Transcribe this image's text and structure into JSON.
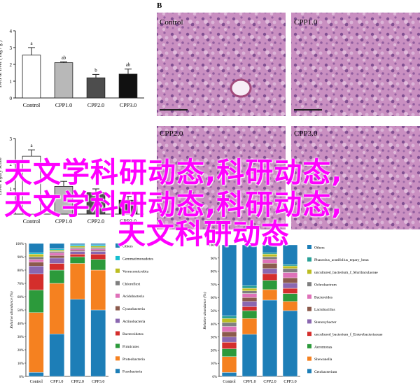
{
  "panel_b_letter": "B",
  "micro_labels": [
    "Control",
    "CPP1.0",
    "CPP2.0",
    "CPP3.0"
  ],
  "overlay_lines": [
    "天文学科研动态,科研动态,",
    "天文学科研动态,科研动态,",
    "天文科研动态"
  ],
  "colors": {
    "bars1": [
      "#ffffff",
      "#b8b8b8",
      "#4d4d4d",
      "#111111"
    ],
    "taxa": [
      "#1d7eb7",
      "#f58120",
      "#2c9a3b",
      "#d42e2c",
      "#8a67b0",
      "#8b5a4c",
      "#df72b9",
      "#7f7f7f",
      "#bcbd22",
      "#17becf"
    ],
    "genera": [
      "#1d7eb7",
      "#f58120",
      "#2c9a3b",
      "#d42e2c",
      "#8a67b0",
      "#8b5a4c",
      "#df72b9",
      "#7f7f7f",
      "#bcbd22",
      "#2aa198"
    ],
    "micro": "#c98fc1"
  },
  "chart_data": [
    {
      "type": "bar",
      "ylabel": "TAG of liver ( mg / g )",
      "categories": [
        "Control",
        "CPP1.0",
        "CPP2.0",
        "CPP3.0"
      ],
      "values": [
        2.55,
        2.1,
        1.2,
        1.42
      ],
      "errors": [
        0.45,
        0.05,
        0.2,
        0.3
      ],
      "annotations": [
        "a",
        "ab",
        "b",
        "ab"
      ],
      "ylim": [
        0,
        4
      ],
      "ticks": [
        "0",
        "1",
        "2",
        "3",
        "4"
      ]
    },
    {
      "type": "bar",
      "ylabel": "Liver injury score",
      "categories": [
        "Control",
        "CPP1.0",
        "CPP2.0",
        "CPP3.0"
      ],
      "values": [
        2.3,
        1.1,
        0.85,
        0.55
      ],
      "errors": [
        0.25,
        0.2,
        0.15,
        0.15
      ],
      "annotations": [
        "a",
        "",
        "",
        ""
      ],
      "ylim": [
        0,
        3
      ],
      "ticks": [
        "0",
        "1",
        "2",
        "3"
      ]
    },
    {
      "type": "bar",
      "subtype": "stacked-percent",
      "ylabel": "Relative abundance (%)",
      "categories": [
        "Control",
        "CPP1.0",
        "CPP2.0",
        "CPP3.0"
      ],
      "ticks": [
        "0%",
        "10%",
        "20%",
        "30%",
        "40%",
        "50%",
        "60%",
        "70%",
        "80%",
        "90%",
        "100%"
      ],
      "legend": [
        "Others",
        "Gemmatimonadetes",
        "Verrucomicrobia",
        "Chloroflexi",
        "Acidobacteria",
        "Cyanobacteria",
        "Actinobacteria",
        "Bacteroidetes",
        "Firmicutes",
        "Proteobacteria",
        "Fusobacteria"
      ],
      "series": [
        {
          "name": "Fusobacteria",
          "values": [
            3,
            32,
            58,
            50
          ]
        },
        {
          "name": "Proteobacteria",
          "values": [
            45,
            38,
            27,
            30
          ]
        },
        {
          "name": "Firmicutes",
          "values": [
            17,
            10,
            5,
            8
          ]
        },
        {
          "name": "Bacteroidetes",
          "values": [
            12,
            5,
            2,
            4
          ]
        },
        {
          "name": "Actinobacteria",
          "values": [
            6,
            4,
            2,
            2
          ]
        },
        {
          "name": "Cyanobacteria",
          "values": [
            3,
            2,
            1,
            1
          ]
        },
        {
          "name": "Acidobacteria",
          "values": [
            2,
            2,
            1,
            1
          ]
        },
        {
          "name": "Chloroflexi",
          "values": [
            2,
            1,
            1,
            1
          ]
        },
        {
          "name": "Verrucomicrobia",
          "values": [
            2,
            1,
            1,
            1
          ]
        },
        {
          "name": "Gemmatimonadetes",
          "values": [
            1,
            1,
            1,
            1
          ]
        },
        {
          "name": "Others",
          "values": [
            7,
            4,
            1,
            1
          ]
        }
      ]
    },
    {
      "type": "bar",
      "subtype": "stacked-percent",
      "ylabel": "Relative abundance (%)",
      "categories": [
        "Control",
        "CPP1.0",
        "CPP2.0",
        "CPP3.0"
      ],
      "ticks": [
        "0%",
        "10%",
        "20%",
        "30%",
        "40%",
        "50%",
        "60%",
        "70%",
        "80%",
        "90%",
        "100%"
      ],
      "legend": [
        "Others",
        "Phaseolus_acutifolius_tepary_bean",
        "uncultured_bacterium_f_Muribaculaceae",
        "Ochrobactrum",
        "Bacteroides",
        "Lactobacillus",
        "Stenoxybacter",
        "uncultured_bacterium_f_Enterobacteriaceae",
        "Aeromonas",
        "Shewanella",
        "Cetobacterium"
      ],
      "series": [
        {
          "name": "Cetobacterium",
          "values": [
            3,
            32,
            58,
            50
          ]
        },
        {
          "name": "Shewanella",
          "values": [
            12,
            12,
            8,
            7
          ]
        },
        {
          "name": "Aeromonas",
          "values": [
            6,
            6,
            7,
            6
          ]
        },
        {
          "name": "uncultured_bacterium_f_Enterobacteriaceae",
          "values": [
            5,
            3,
            5,
            4
          ]
        },
        {
          "name": "Stenoxybacter",
          "values": [
            4,
            4,
            4,
            4
          ]
        },
        {
          "name": "Lactobacillus",
          "values": [
            4,
            3,
            4,
            4
          ]
        },
        {
          "name": "Bacteroides",
          "values": [
            4,
            3,
            3,
            4
          ]
        },
        {
          "name": "Ochrobactrum",
          "values": [
            3,
            2,
            2,
            3
          ]
        },
        {
          "name": "uncultured_bacterium_f_Muribaculaceae",
          "values": [
            3,
            2,
            2,
            2
          ]
        },
        {
          "name": "Phaseolus_acutifolius_tepary_bean",
          "values": [
            2,
            2,
            1,
            1
          ]
        },
        {
          "name": "Others",
          "values": [
            54,
            31,
            6,
            15
          ]
        }
      ]
    }
  ]
}
